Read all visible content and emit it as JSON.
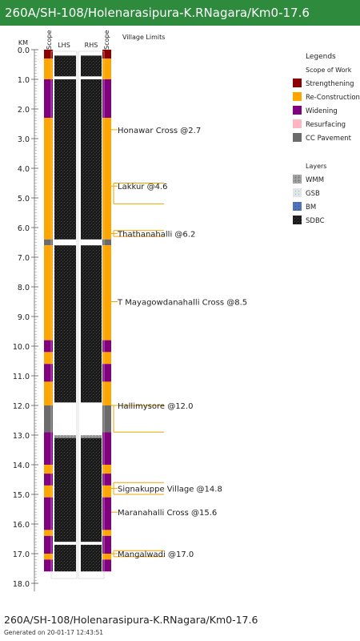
{
  "header": {
    "title": "260A/SH-108/Holenarasipura-K.RNagara/Km0-17.6"
  },
  "columns": {
    "km": "KM",
    "scope_left": "Scope",
    "lhs": "LHS",
    "rhs": "RHS",
    "scope_right": "Scope",
    "village_limits": "Village Limits"
  },
  "km_ticks": [
    "0.0",
    "1.0",
    "2.0",
    "3.0",
    "4.0",
    "5.0",
    "6.0",
    "7.0",
    "8.0",
    "9.0",
    "10.0",
    "11.0",
    "12.0",
    "13.0",
    "14.0",
    "15.0",
    "16.0",
    "17.0",
    "18.0"
  ],
  "scope_segments": [
    {
      "from": 0.0,
      "to": 0.3,
      "type": "strengthening"
    },
    {
      "from": 0.3,
      "to": 1.0,
      "type": "re-construction"
    },
    {
      "from": 1.0,
      "to": 1.5,
      "type": "widening"
    },
    {
      "from": 1.5,
      "to": 2.3,
      "type": "widening"
    },
    {
      "from": 2.3,
      "to": 6.4,
      "type": "re-construction"
    },
    {
      "from": 6.4,
      "to": 6.6,
      "type": "cc-pavement"
    },
    {
      "from": 6.6,
      "to": 9.8,
      "type": "re-construction"
    },
    {
      "from": 9.8,
      "to": 10.2,
      "type": "widening"
    },
    {
      "from": 10.2,
      "to": 10.6,
      "type": "re-construction"
    },
    {
      "from": 10.6,
      "to": 11.2,
      "type": "widening"
    },
    {
      "from": 11.2,
      "to": 12.0,
      "type": "re-construction"
    },
    {
      "from": 12.0,
      "to": 12.9,
      "type": "cc-pavement"
    },
    {
      "from": 12.9,
      "to": 14.0,
      "type": "widening"
    },
    {
      "from": 14.0,
      "to": 14.3,
      "type": "re-construction"
    },
    {
      "from": 14.3,
      "to": 14.7,
      "type": "widening"
    },
    {
      "from": 14.7,
      "to": 15.1,
      "type": "re-construction"
    },
    {
      "from": 15.1,
      "to": 16.2,
      "type": "widening"
    },
    {
      "from": 16.2,
      "to": 16.4,
      "type": "re-construction"
    },
    {
      "from": 16.4,
      "to": 17.0,
      "type": "widening"
    },
    {
      "from": 17.0,
      "to": 17.2,
      "type": "re-construction"
    },
    {
      "from": 17.2,
      "to": 17.6,
      "type": "widening"
    }
  ],
  "layer_segments": [
    {
      "from": 0.2,
      "to": 0.9,
      "layer": "sdbc"
    },
    {
      "from": 1.0,
      "to": 6.4,
      "layer": "sdbc"
    },
    {
      "from": 6.6,
      "to": 11.9,
      "layer": "sdbc"
    },
    {
      "from": 13.0,
      "to": 13.1,
      "layer": "wmm"
    },
    {
      "from": 13.1,
      "to": 16.6,
      "layer": "sdbc"
    },
    {
      "from": 16.7,
      "to": 17.6,
      "layer": "sdbc"
    }
  ],
  "villages": [
    {
      "label": "Honawar Cross @2.7",
      "km": 2.7
    },
    {
      "label": "Lakkur @4.6",
      "km": 4.6,
      "from": 4.5,
      "to": 5.2
    },
    {
      "label": "Thathanahalli @6.2",
      "km": 6.2,
      "from": 6.1,
      "to": 6.3
    },
    {
      "label": "T Mayagowdanahalli Cross @8.5",
      "km": 8.5
    },
    {
      "label": "Hallimysore @12.0",
      "km": 12.0,
      "from": 12.0,
      "to": 12.9
    },
    {
      "label": "Signakuppe Village @14.8",
      "km": 14.8,
      "from": 14.6,
      "to": 15.0
    },
    {
      "label": "Maranahalli Cross @15.6",
      "km": 15.6
    },
    {
      "label": "Mangalwadi @17.0",
      "km": 17.0,
      "from": 16.9,
      "to": 17.1
    }
  ],
  "legend": {
    "title": "Legends",
    "scope_title": "Scope of Work",
    "scope_items": [
      {
        "key": "strengthening",
        "label": "Strengthening",
        "color": "#8b0000"
      },
      {
        "key": "re-construction",
        "label": "Re-Construction",
        "color": "#ffa500"
      },
      {
        "key": "widening",
        "label": "Widening",
        "color": "#800080"
      },
      {
        "key": "resurfacing",
        "label": "Resurfacing",
        "color": "#ffb6c1"
      },
      {
        "key": "cc-pavement",
        "label": "CC Pavement",
        "color": "#6b6b6b"
      }
    ],
    "layers_title": "Layers",
    "layer_items": [
      {
        "key": "wmm",
        "label": "WMM",
        "color": "#8f8f8f"
      },
      {
        "key": "gsb",
        "label": "GSB",
        "color": "#d3dbe0"
      },
      {
        "key": "bm",
        "label": "BM",
        "color": "#4f72b8"
      },
      {
        "key": "sdbc",
        "label": "SDBC",
        "color": "#1c1c1c"
      }
    ]
  },
  "footer": {
    "title": "260A/SH-108/Holenarasipura-K.RNagara/Km0-17.6",
    "generated": "Generated on 20-01-17 12:43:51"
  }
}
